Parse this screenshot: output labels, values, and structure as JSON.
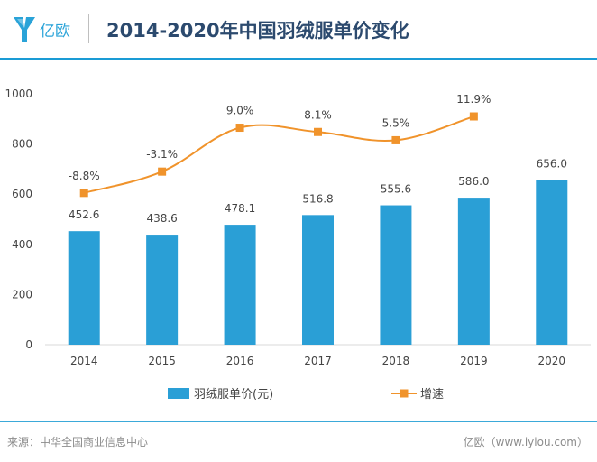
{
  "header": {
    "logo_text": "亿欧",
    "title": "2014-2020年中国羽绒服单价变化"
  },
  "footer": {
    "source": "来源：中华全国商业信息中心",
    "watermark": "亿欧（www.iyiou.com）"
  },
  "colors": {
    "bar": "#2a9fd6",
    "line": "#f0932b",
    "accent": "#1a9bd5",
    "text": "#444444"
  },
  "chart_data": {
    "type": "bar",
    "title": "2014-2020年中国羽绒服单价变化",
    "categories": [
      "2014",
      "2015",
      "2016",
      "2017",
      "2018",
      "2019",
      "2020"
    ],
    "ylim": [
      0,
      1000
    ],
    "yticks": [
      0,
      200,
      400,
      600,
      800,
      1000
    ],
    "series": [
      {
        "name": "羽绒服单价(元)",
        "type": "bar",
        "values": [
          452.6,
          438.6,
          478.1,
          516.8,
          555.6,
          586.0,
          656.0
        ],
        "labels": [
          "452.6",
          "438.6",
          "478.1",
          "516.8",
          "555.6",
          "586.0",
          "656.0"
        ]
      },
      {
        "name": "增速",
        "type": "line",
        "plot_values": [
          605,
          690,
          865,
          848,
          815,
          910
        ],
        "labels": [
          "-8.8%",
          "-3.1%",
          "9.0%",
          "8.1%",
          "5.5%",
          "11.9%"
        ]
      }
    ],
    "legend_position": "bottom"
  }
}
